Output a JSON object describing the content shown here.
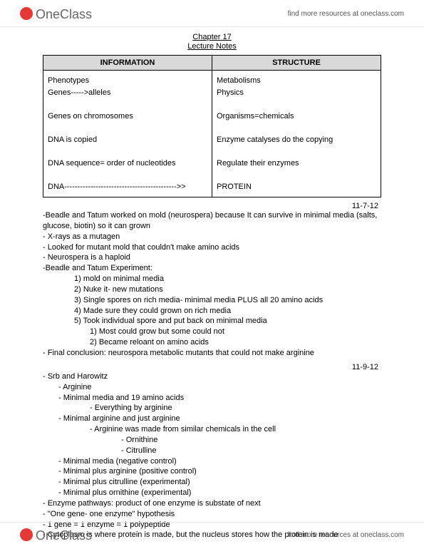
{
  "brand": {
    "name_one": "One",
    "name_class": "Class"
  },
  "header": {
    "link_text": "find more resources at oneclass.com"
  },
  "footer": {
    "link_text": "find more resources at oneclass.com"
  },
  "doc": {
    "chapter_title": "Chapter 17",
    "subtitle": "Lecture Notes",
    "table": {
      "headers": [
        "INFORMATION",
        "STRUCTURE"
      ],
      "left_lines": "Phenotypes\nGenes----->alleles\n\nGenes on chromosomes\n\nDNA is copied\n\nDNA sequence= order of nucleotides\n\nDNA------------------------------------------->>",
      "right_lines": "Metabolisms\nPhysics\n\nOrganisms=chemicals\n\nEnzyme catalyses do the copying\n\nRegulate their enzymes\n\nPROTEIN"
    },
    "date1": "11-7-12",
    "date2": "11-9-12",
    "section1": [
      {
        "lvl": 0,
        "t": "-Beadle and Tatum worked on mold (neurospera) because It can survive in minimal media (salts, glucose, biotin) so it can grown"
      },
      {
        "lvl": 0,
        "t": "- X-rays as a mutagen"
      },
      {
        "lvl": 0,
        "t": "- Looked for mutant mold that couldn't make amino acids"
      },
      {
        "lvl": 0,
        "t": "- Neurospera is a haploid"
      },
      {
        "lvl": 0,
        "t": "-Beadle and Tatum Experiment:"
      },
      {
        "lvl": 2,
        "t": "1) mold on minimal media"
      },
      {
        "lvl": 2,
        "t": "2) Nuke it- new mutations"
      },
      {
        "lvl": 2,
        "t": "3) Single spores on rich media- minimal media PLUS all 20 amino acids"
      },
      {
        "lvl": 2,
        "t": "4) Made sure they could grown on rich media"
      },
      {
        "lvl": 2,
        "t": "5) Took individual spore and put back on minimal media"
      },
      {
        "lvl": 3,
        "t": "1) Most could grow but some could not"
      },
      {
        "lvl": 3,
        "t": "2) Became reloant on amino acids"
      },
      {
        "lvl": 0,
        "t": "- Final conclusion: neurospora metabolic mutants that could not make arginine"
      }
    ],
    "section2": [
      {
        "lvl": 0,
        "t": "- Srb and Harowitz"
      },
      {
        "lvl": 1,
        "t": "- Arginine"
      },
      {
        "lvl": 1,
        "t": "- Minimal media and 19 amino acids"
      },
      {
        "lvl": 3,
        "t": "- Everything by arginine"
      },
      {
        "lvl": 1,
        "t": "- Minimal arginine and just arginine"
      },
      {
        "lvl": 3,
        "t": "- Arginine was made from similar chemicals in the cell"
      },
      {
        "lvl": 5,
        "t": "- Ornithine"
      },
      {
        "lvl": 5,
        "t": "- Citrulline"
      },
      {
        "lvl": 1,
        "t": "- Minimal media (negative control)"
      },
      {
        "lvl": 1,
        "t": "- Minimal plus arginine (positive control)"
      },
      {
        "lvl": 1,
        "t": "- Minimal plus citrulline (experimental)"
      },
      {
        "lvl": 1,
        "t": "- Minimal plus ornithine (experimental)"
      },
      {
        "lvl": 0,
        "t": "- Enzyme pathways: product of one enzyme is substate of next"
      },
      {
        "lvl": 0,
        "t": "- \"One gene- one enzyme\" hypothesis"
      },
      {
        "lvl": 0,
        "t": "- 1 gene = 1 enzyme = 1 polypeptide"
      },
      {
        "lvl": 0,
        "t": "- Cytoplasm is where protein is made, but the nucleus stores how the protein is made"
      }
    ]
  }
}
